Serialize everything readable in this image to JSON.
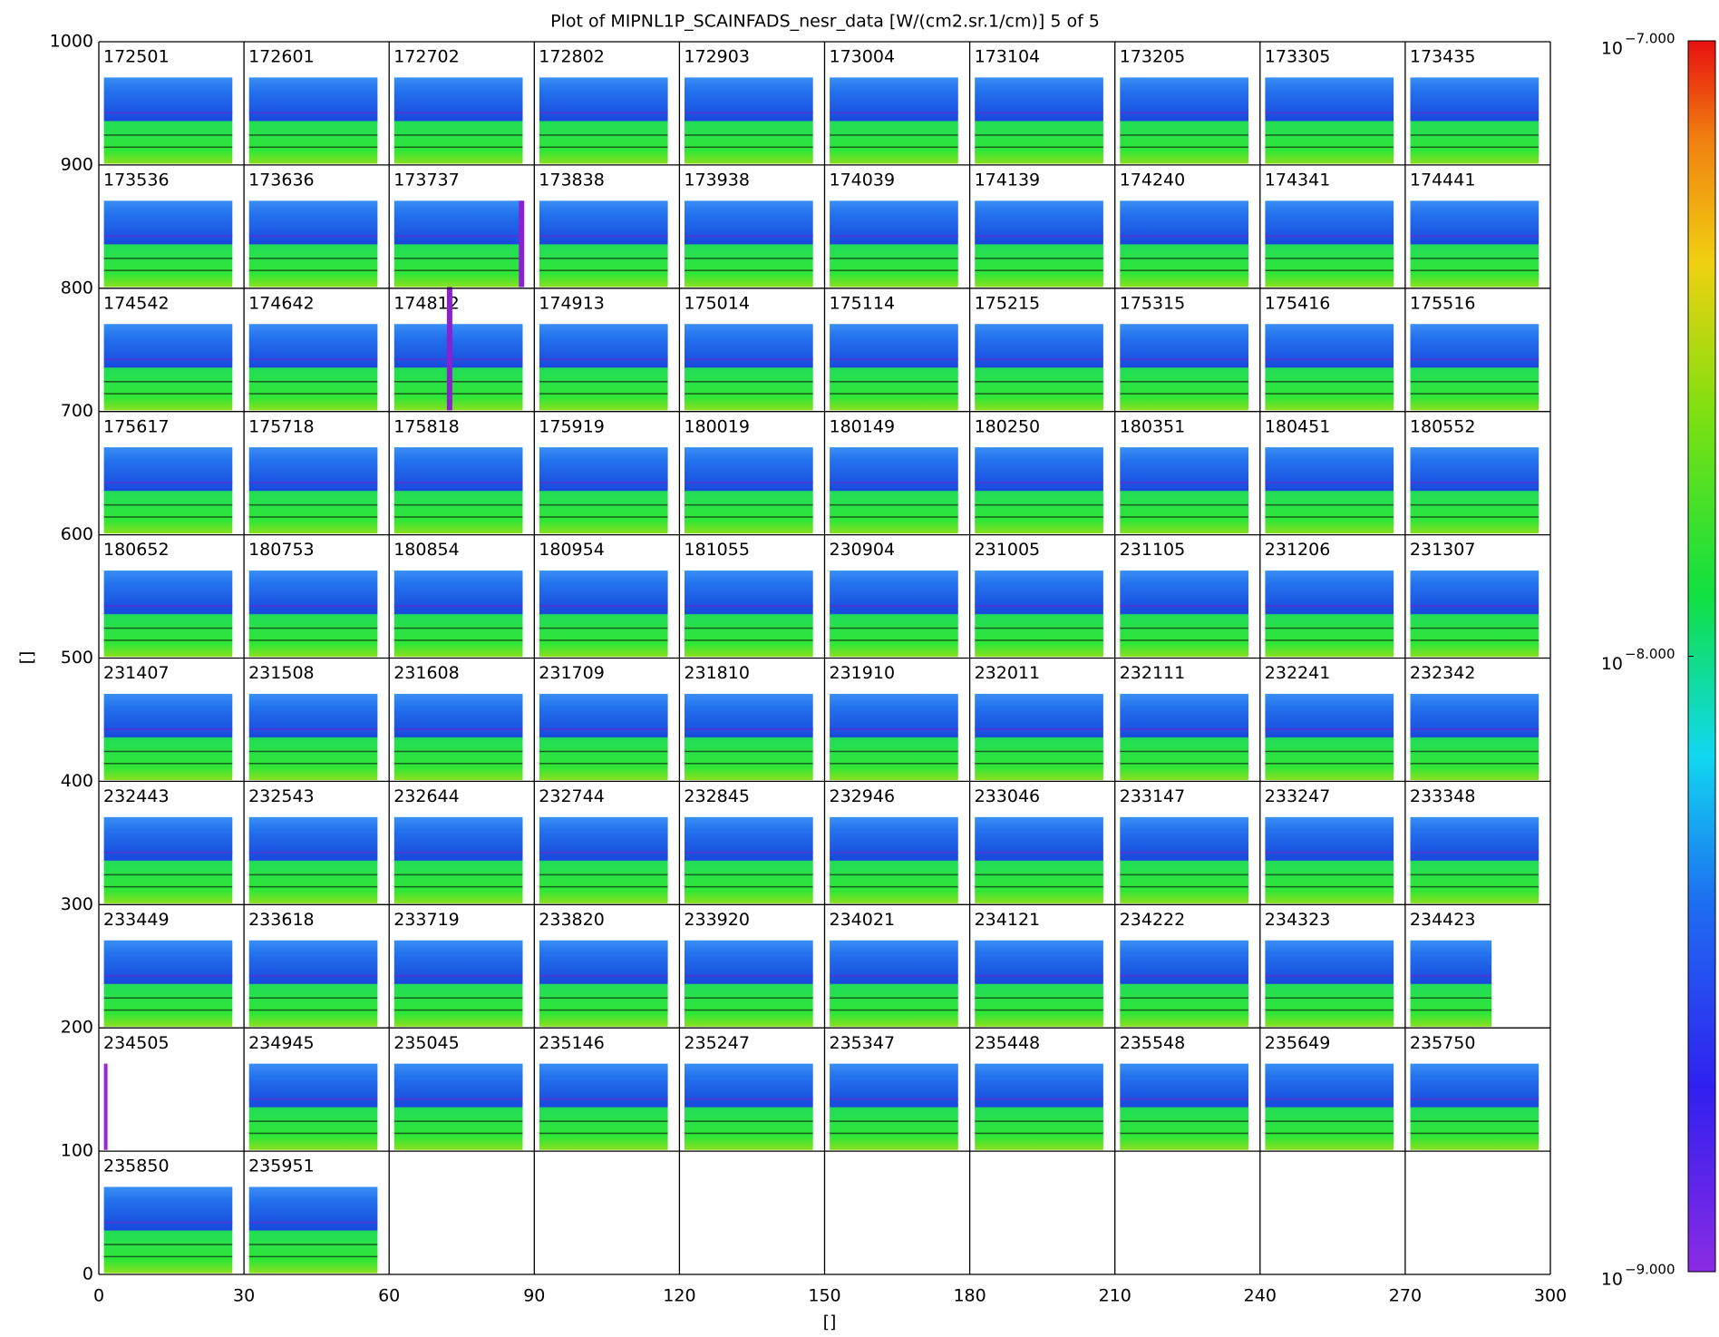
{
  "chart_data": {
    "type": "panel_grid",
    "title": "Plot of MIPNL1P_SCAINFADS_nesr_data [W/(cm2.sr.1/cm)] 5 of 5",
    "xlabel": "[]",
    "ylabel": "[]",
    "xlim": [
      0,
      300
    ],
    "ylim": [
      0,
      1000
    ],
    "xticks": [
      0,
      30,
      60,
      90,
      120,
      150,
      180,
      210,
      240,
      270,
      300
    ],
    "yticks": [
      0,
      100,
      200,
      300,
      400,
      500,
      600,
      700,
      800,
      900,
      1000
    ],
    "panel_width": 30,
    "panel_height": 100,
    "columns": 10,
    "panel_labels": [
      "172501",
      "172601",
      "172702",
      "172802",
      "172903",
      "173004",
      "173104",
      "173205",
      "173305",
      "173435",
      "173536",
      "173636",
      "173737",
      "173838",
      "173938",
      "174039",
      "174139",
      "174240",
      "174341",
      "174441",
      "174542",
      "174642",
      "174812",
      "174913",
      "175014",
      "175114",
      "175215",
      "175315",
      "175416",
      "175516",
      "175617",
      "175718",
      "175818",
      "175919",
      "180019",
      "180149",
      "180250",
      "180351",
      "180451",
      "180552",
      "180652",
      "180753",
      "180854",
      "180954",
      "181055",
      "230904",
      "231005",
      "231105",
      "231206",
      "231307",
      "231407",
      "231508",
      "231608",
      "231709",
      "231810",
      "231910",
      "232011",
      "232111",
      "232241",
      "232342",
      "232443",
      "232543",
      "232644",
      "232744",
      "232845",
      "232946",
      "233046",
      "233147",
      "233247",
      "233348",
      "233449",
      "233618",
      "233719",
      "233820",
      "233920",
      "234021",
      "234121",
      "234222",
      "234323",
      "234423",
      "234505",
      "234945",
      "235045",
      "235146",
      "235247",
      "235347",
      "235448",
      "235548",
      "235649",
      "235750",
      "235850",
      "235951"
    ],
    "colorbar": {
      "log_scale": true,
      "lim": [
        -9,
        -7
      ],
      "ticks": [
        {
          "value": -7,
          "label": "10",
          "exponent": "−7.000"
        },
        {
          "value": -8,
          "label": "10",
          "exponent": "−8.000"
        },
        {
          "value": -9,
          "label": "10",
          "exponent": "−9.000"
        }
      ]
    }
  }
}
